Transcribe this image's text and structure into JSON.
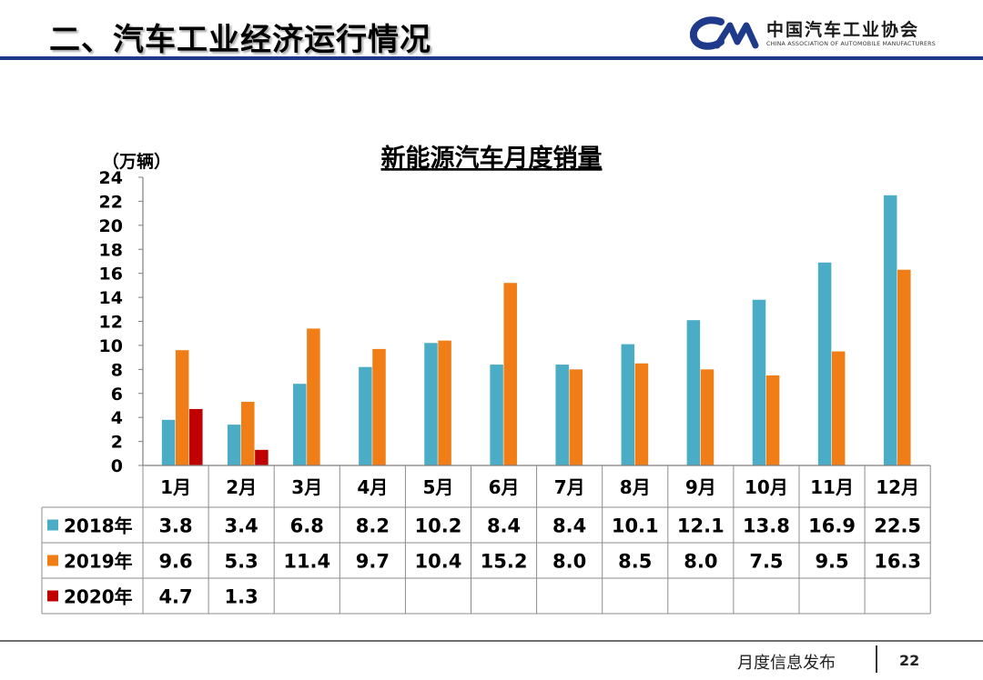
{
  "header": {
    "title": "二、汽车工业经济运行情况",
    "logo_cn": "中国汽车工业协会",
    "logo_en": "CHINA ASSOCIATION OF AUTOMOBILE MANUFACTURERS"
  },
  "footer": {
    "text": "月度信息发布",
    "page_number": "22"
  },
  "colors": {
    "s2018": "#4bacc6",
    "s2019": "#f07d16",
    "s2020": "#c00000",
    "header_rule": "#1f3a8a",
    "logo_blue": "#1f3a8a"
  },
  "chart_data": {
    "type": "bar",
    "title": "新能源汽车月度销量",
    "ylabel": "（万辆）",
    "ylim": [
      0,
      24
    ],
    "ytick_step": 2,
    "categories": [
      "1月",
      "2月",
      "3月",
      "4月",
      "5月",
      "6月",
      "7月",
      "8月",
      "9月",
      "10月",
      "11月",
      "12月"
    ],
    "series": [
      {
        "name": "2018年",
        "color": "#4bacc6",
        "values": [
          3.8,
          3.4,
          6.8,
          8.2,
          10.2,
          8.4,
          8.4,
          10.1,
          12.1,
          13.8,
          16.9,
          22.5
        ]
      },
      {
        "name": "2019年",
        "color": "#f07d16",
        "values": [
          9.6,
          5.3,
          11.4,
          9.7,
          10.4,
          15.2,
          8.0,
          8.5,
          8.0,
          7.5,
          9.5,
          16.3
        ]
      },
      {
        "name": "2020年",
        "color": "#c00000",
        "values": [
          4.7,
          1.3,
          null,
          null,
          null,
          null,
          null,
          null,
          null,
          null,
          null,
          null
        ]
      }
    ],
    "data_table": true,
    "grid": false
  }
}
